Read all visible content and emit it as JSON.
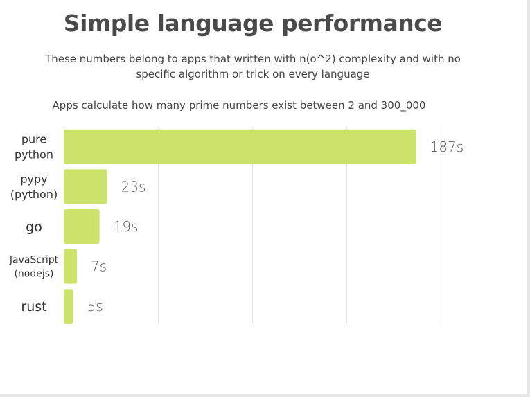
{
  "header": {
    "title": "Simple language performance",
    "subtitle_line1": "These numbers belong to apps that written with n(o^2) complexity and with no",
    "subtitle_line2": "specific algorithm or trick on every language",
    "description": "Apps calculate how many prime numbers exist between 2 and 300_000"
  },
  "chart_data": {
    "type": "bar",
    "orientation": "horizontal",
    "title": "Simple language performance",
    "xlabel": "",
    "ylabel": "",
    "categories": [
      [
        "pure",
        "python"
      ],
      [
        "pypy",
        "(python)"
      ],
      [
        "go"
      ],
      [
        "JavaScript",
        "(nodejs)"
      ],
      [
        "rust"
      ]
    ],
    "values": [
      187,
      23,
      19,
      7,
      5
    ],
    "value_labels": [
      "187s",
      "23s",
      "19s",
      "7s",
      "5s"
    ],
    "xlim": [
      0,
      200
    ],
    "grid": true,
    "bar_color": "#cbe36a",
    "gridline_color": "#e3e3e3"
  }
}
